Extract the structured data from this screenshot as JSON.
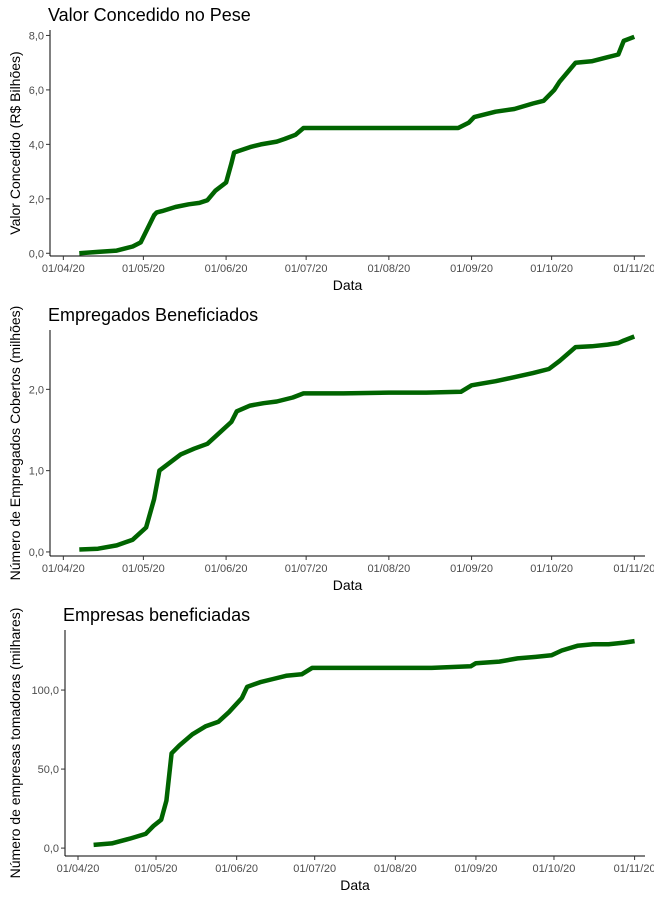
{
  "chart_data": [
    {
      "type": "line",
      "title": "Valor Concedido no Pese",
      "xlabel": "Data",
      "ylabel": "Valor Concedido (R$ Bilhões)",
      "x_ticks": [
        "01/04/20",
        "01/05/20",
        "01/06/20",
        "01/07/20",
        "01/08/20",
        "01/09/20",
        "01/10/20",
        "01/11/20"
      ],
      "y_ticks": [
        "0,0",
        "2,0",
        "4,0",
        "6,0",
        "8,0"
      ],
      "y_tick_values": [
        0,
        2,
        4,
        6,
        8
      ],
      "ylim": [
        -0.1,
        8.2
      ],
      "xlim_days": [
        -5,
        218
      ],
      "color": "#006400",
      "series": [
        {
          "x": [
            "2020-04-07",
            "2020-04-14",
            "2020-04-21",
            "2020-04-27",
            "2020-04-30",
            "2020-05-05",
            "2020-05-06",
            "2020-05-08",
            "2020-05-13",
            "2020-05-18",
            "2020-05-22",
            "2020-05-25",
            "2020-05-28",
            "2020-06-01",
            "2020-06-03",
            "2020-06-04",
            "2020-06-10",
            "2020-06-14",
            "2020-06-20",
            "2020-06-23",
            "2020-06-27",
            "2020-06-30",
            "2020-07-15",
            "2020-08-01",
            "2020-08-15",
            "2020-08-27",
            "2020-08-31",
            "2020-09-02",
            "2020-09-10",
            "2020-09-17",
            "2020-09-24",
            "2020-09-28",
            "2020-10-02",
            "2020-10-04",
            "2020-10-10",
            "2020-10-16",
            "2020-10-22",
            "2020-10-26",
            "2020-10-28",
            "2020-11-01"
          ],
          "y": [
            0.0,
            0.05,
            0.1,
            0.25,
            0.4,
            1.4,
            1.5,
            1.55,
            1.7,
            1.8,
            1.85,
            1.95,
            2.3,
            2.6,
            3.3,
            3.7,
            3.9,
            4.0,
            4.1,
            4.2,
            4.35,
            4.6,
            4.6,
            4.6,
            4.6,
            4.6,
            4.8,
            5.0,
            5.2,
            5.3,
            5.5,
            5.6,
            6.0,
            6.3,
            7.0,
            7.05,
            7.2,
            7.3,
            7.8,
            7.95
          ]
        }
      ]
    },
    {
      "type": "line",
      "title": "Empregados Beneficiados",
      "xlabel": "Data",
      "ylabel": "Número de Empregados Cobertos (milhões)",
      "x_ticks": [
        "01/04/20",
        "01/05/20",
        "01/06/20",
        "01/07/20",
        "01/08/20",
        "01/09/20",
        "01/10/20",
        "01/11/20"
      ],
      "y_ticks": [
        "0,0",
        "1,0",
        "2,0"
      ],
      "y_tick_values": [
        0,
        1,
        2
      ],
      "ylim": [
        -0.05,
        2.73
      ],
      "xlim_days": [
        -5,
        218
      ],
      "color": "#006400",
      "series": [
        {
          "x": [
            "2020-04-07",
            "2020-04-14",
            "2020-04-21",
            "2020-04-27",
            "2020-05-02",
            "2020-05-05",
            "2020-05-07",
            "2020-05-09",
            "2020-05-15",
            "2020-05-20",
            "2020-05-25",
            "2020-05-29",
            "2020-06-03",
            "2020-06-05",
            "2020-06-10",
            "2020-06-15",
            "2020-06-20",
            "2020-06-26",
            "2020-06-30",
            "2020-07-15",
            "2020-08-01",
            "2020-08-15",
            "2020-08-28",
            "2020-09-01",
            "2020-09-10",
            "2020-09-17",
            "2020-09-24",
            "2020-09-30",
            "2020-10-04",
            "2020-10-10",
            "2020-10-16",
            "2020-10-22",
            "2020-10-26",
            "2020-10-28",
            "2020-11-01"
          ],
          "y": [
            0.03,
            0.04,
            0.08,
            0.15,
            0.3,
            0.65,
            1.0,
            1.05,
            1.2,
            1.27,
            1.33,
            1.45,
            1.6,
            1.73,
            1.8,
            1.83,
            1.85,
            1.9,
            1.95,
            1.95,
            1.96,
            1.96,
            1.97,
            2.05,
            2.1,
            2.15,
            2.2,
            2.25,
            2.35,
            2.52,
            2.53,
            2.55,
            2.57,
            2.6,
            2.65
          ]
        }
      ]
    },
    {
      "type": "line",
      "title": "Empresas beneficiadas",
      "xlabel": "Data",
      "ylabel": "Número de empresas tomadoras (milhares)",
      "x_ticks": [
        "01/04/20",
        "01/05/20",
        "01/06/20",
        "01/07/20",
        "01/08/20",
        "01/09/20",
        "01/10/20",
        "01/11/20"
      ],
      "y_ticks": [
        "0,0",
        "50,0",
        "100,0"
      ],
      "y_tick_values": [
        0,
        50,
        100
      ],
      "ylim": [
        -5,
        138
      ],
      "xlim_days": [
        -5,
        218
      ],
      "color": "#006400",
      "series": [
        {
          "x": [
            "2020-04-07",
            "2020-04-14",
            "2020-04-21",
            "2020-04-27",
            "2020-04-30",
            "2020-05-03",
            "2020-05-05",
            "2020-05-07",
            "2020-05-10",
            "2020-05-15",
            "2020-05-20",
            "2020-05-25",
            "2020-05-29",
            "2020-06-03",
            "2020-06-05",
            "2020-06-10",
            "2020-06-15",
            "2020-06-20",
            "2020-06-26",
            "2020-06-30",
            "2020-07-15",
            "2020-08-01",
            "2020-08-15",
            "2020-08-30",
            "2020-09-01",
            "2020-09-10",
            "2020-09-17",
            "2020-09-24",
            "2020-09-30",
            "2020-10-04",
            "2020-10-10",
            "2020-10-16",
            "2020-10-22",
            "2020-10-28",
            "2020-11-01"
          ],
          "y": [
            2,
            3,
            6,
            9,
            14,
            18,
            30,
            60,
            65,
            72,
            77,
            80,
            86,
            95,
            102,
            105,
            107,
            109,
            110,
            114,
            114,
            114,
            114,
            115,
            117,
            118,
            120,
            121,
            122,
            125,
            128,
            129,
            129,
            130,
            131
          ]
        }
      ]
    }
  ]
}
